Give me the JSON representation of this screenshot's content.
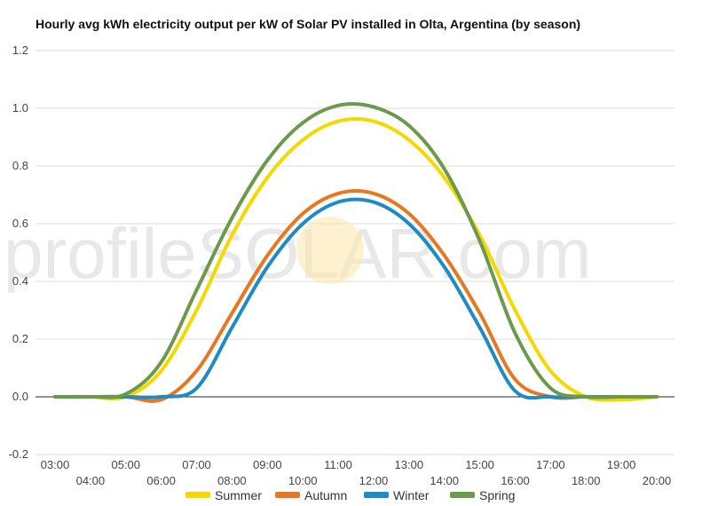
{
  "chart_data": {
    "type": "line",
    "title": "Hourly avg kWh electricity output per kW of Solar PV installed in Olta, Argentina (by season)",
    "xlabel": "",
    "ylabel": "",
    "ylim": [
      -0.2,
      1.2
    ],
    "yticks": [
      "-0.2",
      "0.0",
      "0.2",
      "0.4",
      "0.6",
      "0.8",
      "1.0",
      "1.2"
    ],
    "categories": [
      "03:00",
      "04:00",
      "05:00",
      "06:00",
      "07:00",
      "08:00",
      "09:00",
      "10:00",
      "11:00",
      "12:00",
      "13:00",
      "14:00",
      "15:00",
      "16:00",
      "17:00",
      "18:00",
      "19:00",
      "20:00"
    ],
    "grid": true,
    "legend_position": "bottom",
    "watermark": "profileSOLAR.com",
    "series": [
      {
        "name": "Summer",
        "color": "#f5d800",
        "values": [
          0,
          0,
          0,
          0.09,
          0.3,
          0.56,
          0.76,
          0.89,
          0.955,
          0.955,
          0.89,
          0.76,
          0.56,
          0.3,
          0.09,
          0,
          -0.01,
          0
        ]
      },
      {
        "name": "Autumn",
        "color": "#e87722",
        "values": [
          0,
          0,
          0,
          -0.01,
          0.09,
          0.29,
          0.49,
          0.635,
          0.705,
          0.705,
          0.635,
          0.49,
          0.29,
          0.06,
          0,
          0,
          0,
          0
        ]
      },
      {
        "name": "Winter",
        "color": "#1e8bc3",
        "values": [
          0,
          0,
          0,
          0,
          0.03,
          0.24,
          0.45,
          0.6,
          0.675,
          0.675,
          0.6,
          0.45,
          0.24,
          0.02,
          0,
          0,
          0,
          0
        ]
      },
      {
        "name": "Spring",
        "color": "#6b9a4b",
        "values": [
          0,
          0,
          0.01,
          0.12,
          0.37,
          0.62,
          0.82,
          0.95,
          1.01,
          1.005,
          0.94,
          0.79,
          0.54,
          0.22,
          0.03,
          0,
          0,
          0
        ]
      }
    ]
  }
}
